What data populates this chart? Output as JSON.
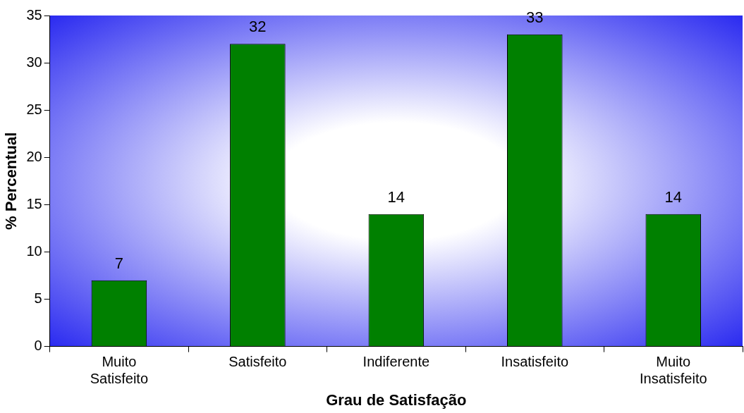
{
  "chart_data": {
    "type": "bar",
    "xlabel": "Grau de Satisfação",
    "ylabel": "% Percentual",
    "categories": [
      "Muito Satisfeito",
      "Satisfeito",
      "Indiferente",
      "Insatisfeito",
      "Muito Insatisfeito"
    ],
    "values": [
      7,
      32,
      14,
      33,
      14
    ],
    "color": "#008000",
    "ylim": [
      0,
      35
    ],
    "yticks": [
      0,
      5,
      10,
      15,
      20,
      25,
      30,
      35
    ],
    "grid": false,
    "legend": false,
    "data_labels": true
  }
}
